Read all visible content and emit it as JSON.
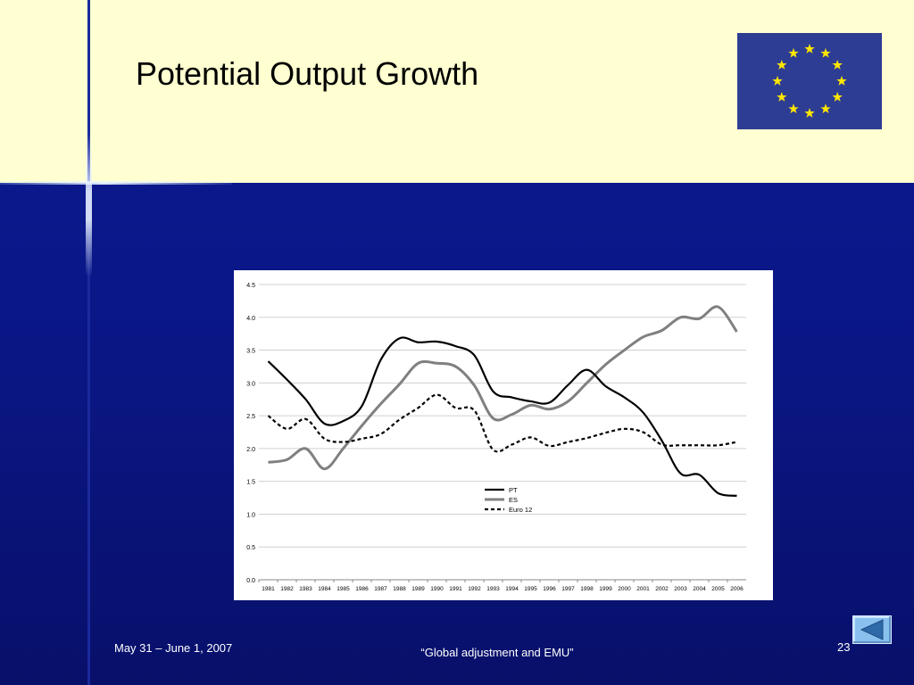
{
  "slide": {
    "title": "Potential Output Growth",
    "footer_left": "May 31 – June 1, 2007",
    "footer_center": "“Global adjustment and EMU”",
    "page_number": "23"
  },
  "logo": {
    "icon": "eu-flag-icon",
    "background": "#2e3d94",
    "star_color": "#ffe600",
    "star_count": 12
  },
  "nav": {
    "back_icon": "previous-slide-icon"
  },
  "colors": {
    "header_bg": "#ffffd1",
    "slide_bg": "#0a1683",
    "accent_line": "#1a2a9c"
  },
  "chart_data": {
    "type": "line",
    "title": "",
    "xlabel": "",
    "ylabel": "",
    "x": [
      "1981",
      "1982",
      "1983",
      "1984",
      "1985",
      "1986",
      "1987",
      "1988",
      "1989",
      "1990",
      "1991",
      "1992",
      "1993",
      "1994",
      "1995",
      "1996",
      "1997",
      "1998",
      "1999",
      "2000",
      "2001",
      "2002",
      "2003",
      "2004",
      "2005",
      "2006"
    ],
    "ylim": [
      0,
      4.5
    ],
    "yticks": [
      "0.0",
      "0.5",
      "1.0",
      "1.5",
      "2.0",
      "2.5",
      "3.0",
      "3.5",
      "4.0",
      "4.5"
    ],
    "grid": true,
    "legend_position": "center",
    "series": [
      {
        "name": "PT",
        "color": "#000000",
        "dash": "solid",
        "values": [
          3.33,
          3.05,
          2.75,
          2.38,
          2.42,
          2.65,
          3.35,
          3.68,
          3.62,
          3.63,
          3.56,
          3.42,
          2.87,
          2.78,
          2.72,
          2.7,
          2.97,
          3.2,
          2.95,
          2.78,
          2.55,
          2.12,
          1.62,
          1.6,
          1.32,
          1.28
        ]
      },
      {
        "name": "ES",
        "color": "#808080",
        "dash": "solid",
        "values": [
          1.79,
          1.83,
          2.0,
          1.69,
          2.0,
          2.35,
          2.68,
          2.98,
          3.3,
          3.3,
          3.25,
          2.96,
          2.46,
          2.52,
          2.66,
          2.6,
          2.72,
          3.0,
          3.28,
          3.5,
          3.7,
          3.8,
          4.0,
          3.98,
          4.16,
          3.78
        ]
      },
      {
        "name": "Euro 12",
        "color": "#000000",
        "dash": "dashed",
        "values": [
          2.5,
          2.3,
          2.45,
          2.15,
          2.1,
          2.15,
          2.22,
          2.44,
          2.62,
          2.82,
          2.62,
          2.58,
          1.98,
          2.06,
          2.17,
          2.04,
          2.1,
          2.16,
          2.24,
          2.3,
          2.25,
          2.06,
          2.05,
          2.05,
          2.05,
          2.1
        ]
      }
    ]
  }
}
